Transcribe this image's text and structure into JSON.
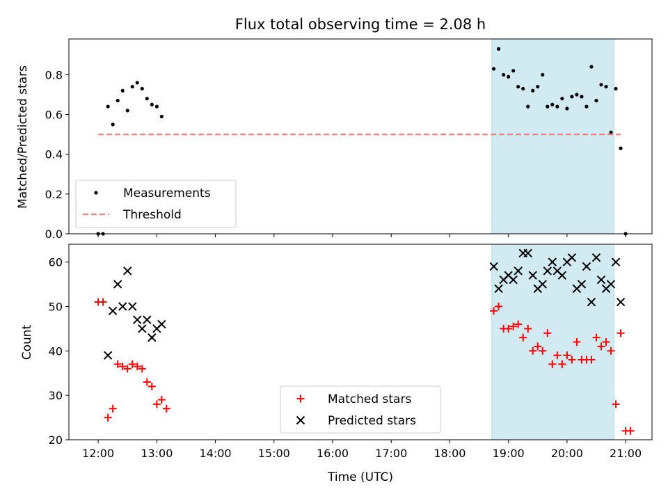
{
  "chart_data": {
    "title": "Flux total observing time = 2.08 h",
    "xlabel": "Time (UTC)",
    "x_ticks": [
      "12:00",
      "13:00",
      "14:00",
      "15:00",
      "16:00",
      "17:00",
      "18:00",
      "19:00",
      "20:00",
      "21:00"
    ],
    "xlim": [
      "11:30",
      "21:27"
    ],
    "shaded_interval": {
      "start": "18:43",
      "end": "20:48",
      "color": "#add8e6"
    },
    "panels": [
      {
        "type": "scatter",
        "ylabel": "Matched/Predicted stars",
        "ylim": [
          0,
          0.98
        ],
        "y_ticks": [
          "0.0",
          "0.2",
          "0.4",
          "0.6",
          "0.8"
        ],
        "legend_position": "lower-left",
        "series": [
          {
            "name": "Measurements",
            "marker": "dot",
            "color": "#000000",
            "points": [
              [
                "12:00",
                0.0
              ],
              [
                "12:05",
                0.0
              ],
              [
                "12:10",
                0.64
              ],
              [
                "12:15",
                0.55
              ],
              [
                "12:20",
                0.67
              ],
              [
                "12:25",
                0.72
              ],
              [
                "12:30",
                0.62
              ],
              [
                "12:35",
                0.74
              ],
              [
                "12:40",
                0.76
              ],
              [
                "12:45",
                0.73
              ],
              [
                "12:50",
                0.68
              ],
              [
                "12:55",
                0.65
              ],
              [
                "13:00",
                0.64
              ],
              [
                "13:05",
                0.59
              ],
              [
                "18:45",
                0.83
              ],
              [
                "18:50",
                0.93
              ],
              [
                "18:55",
                0.8
              ],
              [
                "19:00",
                0.79
              ],
              [
                "19:05",
                0.82
              ],
              [
                "19:10",
                0.74
              ],
              [
                "19:15",
                0.73
              ],
              [
                "19:20",
                0.64
              ],
              [
                "19:25",
                0.72
              ],
              [
                "19:30",
                0.74
              ],
              [
                "19:35",
                0.8
              ],
              [
                "19:40",
                0.64
              ],
              [
                "19:45",
                0.65
              ],
              [
                "19:50",
                0.64
              ],
              [
                "19:55",
                0.68
              ],
              [
                "20:00",
                0.63
              ],
              [
                "20:05",
                0.69
              ],
              [
                "20:10",
                0.7
              ],
              [
                "20:15",
                0.69
              ],
              [
                "20:20",
                0.64
              ],
              [
                "20:25",
                0.84
              ],
              [
                "20:30",
                0.67
              ],
              [
                "20:35",
                0.75
              ],
              [
                "20:40",
                0.74
              ],
              [
                "20:45",
                0.51
              ],
              [
                "20:50",
                0.73
              ],
              [
                "20:55",
                0.43
              ],
              [
                "21:00",
                0.0
              ]
            ]
          },
          {
            "name": "Threshold",
            "type": "line",
            "style": "dashed",
            "color": "#f08080",
            "points": [
              [
                "12:00",
                0.5
              ],
              [
                "20:55",
                0.5
              ]
            ]
          }
        ]
      },
      {
        "type": "scatter",
        "ylabel": "Count",
        "ylim": [
          20,
          64
        ],
        "y_ticks": [
          "20",
          "30",
          "40",
          "50",
          "60"
        ],
        "legend_position": "lower-center",
        "series": [
          {
            "name": "Matched stars",
            "marker": "plus",
            "color": "#ff0000",
            "points": [
              [
                "12:00",
                51
              ],
              [
                "12:05",
                51
              ],
              [
                "12:10",
                25
              ],
              [
                "12:15",
                27
              ],
              [
                "12:20",
                37
              ],
              [
                "12:25",
                36.5
              ],
              [
                "12:30",
                36
              ],
              [
                "12:35",
                37
              ],
              [
                "12:40",
                36.5
              ],
              [
                "12:45",
                36
              ],
              [
                "12:50",
                33
              ],
              [
                "12:55",
                32
              ],
              [
                "13:00",
                28
              ],
              [
                "13:05",
                29
              ],
              [
                "13:10",
                27
              ],
              [
                "18:45",
                49
              ],
              [
                "18:50",
                50
              ],
              [
                "18:55",
                45
              ],
              [
                "19:00",
                45
              ],
              [
                "19:05",
                45.5
              ],
              [
                "19:10",
                46
              ],
              [
                "19:15",
                43
              ],
              [
                "19:20",
                45
              ],
              [
                "19:25",
                40
              ],
              [
                "19:30",
                41
              ],
              [
                "19:35",
                40
              ],
              [
                "19:40",
                44
              ],
              [
                "19:45",
                37
              ],
              [
                "19:50",
                39
              ],
              [
                "19:55",
                37
              ],
              [
                "20:00",
                39
              ],
              [
                "20:05",
                38
              ],
              [
                "20:10",
                42
              ],
              [
                "20:15",
                38
              ],
              [
                "20:20",
                38
              ],
              [
                "20:25",
                38
              ],
              [
                "20:30",
                43
              ],
              [
                "20:35",
                41
              ],
              [
                "20:40",
                42
              ],
              [
                "20:45",
                40
              ],
              [
                "20:50",
                28
              ],
              [
                "20:55",
                44
              ],
              [
                "21:00",
                22
              ],
              [
                "21:05",
                22
              ]
            ]
          },
          {
            "name": "Predicted stars",
            "marker": "x",
            "color": "#000000",
            "points": [
              [
                "12:10",
                39
              ],
              [
                "12:15",
                49
              ],
              [
                "12:20",
                55
              ],
              [
                "12:25",
                50
              ],
              [
                "12:30",
                58
              ],
              [
                "12:35",
                50
              ],
              [
                "12:40",
                47
              ],
              [
                "12:45",
                45
              ],
              [
                "12:50",
                47
              ],
              [
                "12:55",
                43
              ],
              [
                "13:00",
                45
              ],
              [
                "13:05",
                46
              ],
              [
                "18:45",
                59
              ],
              [
                "18:50",
                54
              ],
              [
                "18:55",
                56
              ],
              [
                "19:00",
                57
              ],
              [
                "19:05",
                56
              ],
              [
                "19:10",
                58
              ],
              [
                "19:15",
                62
              ],
              [
                "19:20",
                62
              ],
              [
                "19:25",
                57
              ],
              [
                "19:30",
                54
              ],
              [
                "19:35",
                55
              ],
              [
                "19:40",
                58
              ],
              [
                "19:45",
                60
              ],
              [
                "19:50",
                58
              ],
              [
                "19:55",
                57
              ],
              [
                "20:00",
                60
              ],
              [
                "20:05",
                61
              ],
              [
                "20:10",
                54
              ],
              [
                "20:15",
                55
              ],
              [
                "20:20",
                59
              ],
              [
                "20:25",
                51
              ],
              [
                "20:30",
                61
              ],
              [
                "20:35",
                56
              ],
              [
                "20:40",
                54
              ],
              [
                "20:45",
                55
              ],
              [
                "20:50",
                60
              ],
              [
                "20:55",
                51
              ]
            ]
          }
        ]
      }
    ]
  }
}
